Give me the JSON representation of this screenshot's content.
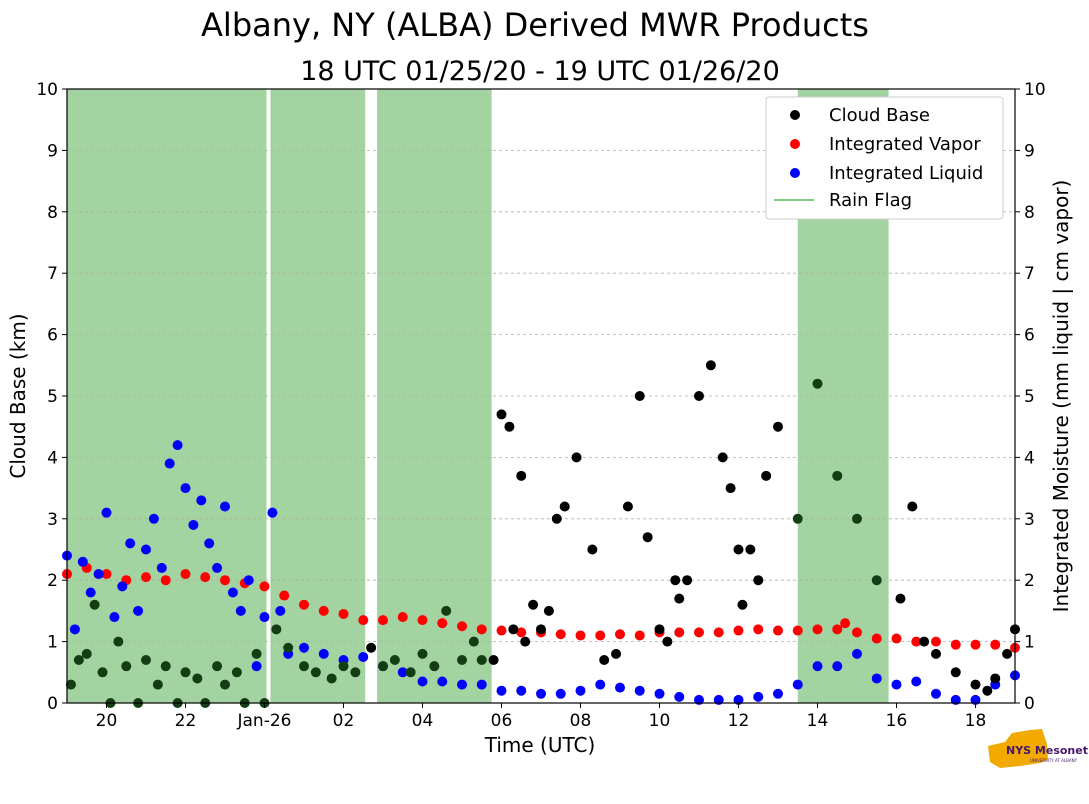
{
  "title": "Albany, NY (ALBA) Derived MWR Products",
  "subtitle": "18 UTC 01/25/20 - 19 UTC 01/26/20",
  "logo": {
    "text": "NYS Mesonet",
    "subtext": "UNIVERSITY AT ALBANY"
  },
  "colors": {
    "cloud_base": "#000000",
    "cloud_base_rain": "#143d14",
    "integrated_vapor": "#ff0000",
    "integrated_liquid": "#0000ff",
    "rain_flag": "#a3d3a0",
    "rain_flag_line": "#5cb85c",
    "grid": "#b0b0b0",
    "logo_gold": "#f2a900",
    "logo_purple": "#46166b"
  },
  "chart_data": {
    "type": "scatter",
    "xlabel": "Time (UTC)",
    "ylabel_left": "Cloud Base (km)",
    "ylabel_right": "Integrated Moisture (mm liquid | cm vapor)",
    "xlim": [
      19.0,
      43.0
    ],
    "ylim": [
      0,
      10
    ],
    "x_ticks": [
      20,
      22,
      24,
      26,
      28,
      30,
      32,
      34,
      36,
      38,
      40,
      42
    ],
    "x_tick_labels": [
      "20",
      "22",
      "Jan-26",
      "02",
      "04",
      "06",
      "08",
      "10",
      "12",
      "14",
      "16",
      "18"
    ],
    "y_ticks": [
      0,
      1,
      2,
      3,
      4,
      5,
      6,
      7,
      8,
      9,
      10
    ],
    "grid": "horizontal dashed",
    "legend": {
      "position": "top-right",
      "entries": [
        "Cloud Base",
        "Integrated Vapor",
        "Integrated Liquid",
        "Rain Flag"
      ]
    },
    "rain_flag_intervals": [
      [
        19.0,
        24.05
      ],
      [
        24.15,
        26.55
      ],
      [
        26.85,
        29.75
      ],
      [
        37.5,
        39.8
      ]
    ],
    "series": [
      {
        "name": "Integrated Vapor",
        "color": "#ff0000",
        "x": [
          19.0,
          19.5,
          20.0,
          20.5,
          21.0,
          21.5,
          22.0,
          22.5,
          23.0,
          23.5,
          24.0,
          24.5,
          25.0,
          25.5,
          26.0,
          26.5,
          27.0,
          27.5,
          28.0,
          28.5,
          29.0,
          29.5,
          30.0,
          30.5,
          31.0,
          31.5,
          32.0,
          32.5,
          33.0,
          33.5,
          34.0,
          34.5,
          35.0,
          35.5,
          36.0,
          36.5,
          37.0,
          37.5,
          38.0,
          38.5,
          38.7,
          39.0,
          39.5,
          40.0,
          40.5,
          41.0,
          41.5,
          42.0,
          42.5,
          43.0
        ],
        "y": [
          2.1,
          2.2,
          2.1,
          2.0,
          2.05,
          2.0,
          2.1,
          2.05,
          2.0,
          1.95,
          1.9,
          1.75,
          1.6,
          1.5,
          1.45,
          1.35,
          1.35,
          1.4,
          1.35,
          1.3,
          1.25,
          1.2,
          1.18,
          1.15,
          1.15,
          1.12,
          1.1,
          1.1,
          1.12,
          1.1,
          1.15,
          1.15,
          1.15,
          1.15,
          1.18,
          1.2,
          1.18,
          1.18,
          1.2,
          1.2,
          1.3,
          1.15,
          1.05,
          1.05,
          1.0,
          1.0,
          0.95,
          0.95,
          0.95,
          0.9
        ]
      },
      {
        "name": "Integrated Liquid",
        "color": "#0000ff",
        "x": [
          19.0,
          19.2,
          19.4,
          19.6,
          19.8,
          20.0,
          20.2,
          20.4,
          20.6,
          20.8,
          21.0,
          21.2,
          21.4,
          21.6,
          21.8,
          22.0,
          22.2,
          22.4,
          22.6,
          22.8,
          23.0,
          23.2,
          23.4,
          23.6,
          23.8,
          24.0,
          24.2,
          24.4,
          24.6,
          25.0,
          25.5,
          26.0,
          26.5,
          27.0,
          27.5,
          28.0,
          28.5,
          29.0,
          29.5,
          30.0,
          30.5,
          31.0,
          31.5,
          32.0,
          32.5,
          33.0,
          33.5,
          34.0,
          34.5,
          35.0,
          35.5,
          36.0,
          36.5,
          37.0,
          37.5,
          38.0,
          38.5,
          39.0,
          39.5,
          40.0,
          40.5,
          41.0,
          41.5,
          42.0,
          42.5,
          43.0
        ],
        "y": [
          2.4,
          1.2,
          2.3,
          1.8,
          2.1,
          3.1,
          1.4,
          1.9,
          2.6,
          1.5,
          2.5,
          3.0,
          2.2,
          3.9,
          4.2,
          3.5,
          2.9,
          3.3,
          2.6,
          2.2,
          3.2,
          1.8,
          1.5,
          2.0,
          0.6,
          1.4,
          3.1,
          1.5,
          0.8,
          0.9,
          0.8,
          0.7,
          0.75,
          0.6,
          0.5,
          0.35,
          0.35,
          0.3,
          0.3,
          0.2,
          0.2,
          0.15,
          0.15,
          0.2,
          0.3,
          0.25,
          0.2,
          0.15,
          0.1,
          0.05,
          0.05,
          0.05,
          0.1,
          0.15,
          0.3,
          0.6,
          0.6,
          0.8,
          0.4,
          0.3,
          0.35,
          0.15,
          0.05,
          0.05,
          0.3,
          0.45
        ]
      },
      {
        "name": "Cloud Base",
        "color": "#000000",
        "x": [
          19.1,
          19.3,
          19.5,
          19.7,
          19.9,
          20.1,
          20.3,
          20.5,
          20.8,
          21.0,
          21.3,
          21.5,
          21.8,
          22.0,
          22.3,
          22.5,
          22.8,
          23.0,
          23.3,
          23.5,
          23.8,
          24.0,
          24.3,
          24.6,
          25.0,
          25.3,
          25.7,
          26.0,
          26.3,
          26.7,
          27.0,
          27.3,
          27.7,
          28.0,
          28.3,
          28.6,
          29.0,
          29.3,
          29.5,
          29.8,
          30.0,
          30.2,
          30.3,
          30.5,
          30.6,
          30.8,
          31.0,
          31.2,
          31.4,
          31.6,
          31.9,
          32.3,
          32.6,
          32.9,
          33.2,
          33.5,
          33.7,
          34.0,
          34.2,
          34.4,
          34.5,
          34.7,
          35.0,
          35.3,
          35.6,
          35.8,
          36.0,
          36.1,
          36.3,
          36.5,
          36.7,
          37.0,
          37.5,
          38.0,
          38.5,
          39.0,
          39.5,
          40.1,
          40.4,
          40.7,
          41.0,
          41.5,
          42.0,
          42.3,
          42.5,
          42.8,
          43.0
        ],
        "y": [
          0.3,
          0.7,
          0.8,
          1.6,
          0.5,
          0.0,
          1.0,
          0.6,
          0.0,
          0.7,
          0.3,
          0.6,
          0.0,
          0.5,
          0.4,
          0.0,
          0.6,
          0.3,
          0.5,
          0.0,
          0.8,
          0.0,
          1.2,
          0.9,
          0.6,
          0.5,
          0.4,
          0.6,
          0.5,
          0.9,
          0.6,
          0.7,
          0.5,
          0.8,
          0.6,
          1.5,
          0.7,
          1.0,
          0.7,
          0.7,
          4.7,
          4.5,
          1.2,
          3.7,
          1.0,
          1.6,
          1.2,
          1.5,
          3.0,
          3.2,
          4.0,
          2.5,
          0.7,
          0.8,
          3.2,
          5.0,
          2.7,
          1.2,
          1.0,
          2.0,
          1.7,
          2.0,
          5.0,
          5.5,
          4.0,
          3.5,
          2.5,
          1.6,
          2.5,
          2.0,
          3.7,
          4.5,
          3.0,
          5.2,
          3.7,
          3.0,
          2.0,
          1.7,
          3.2,
          1.0,
          0.8,
          0.5,
          0.3,
          0.2,
          0.4,
          0.8,
          1.2
        ]
      }
    ]
  }
}
